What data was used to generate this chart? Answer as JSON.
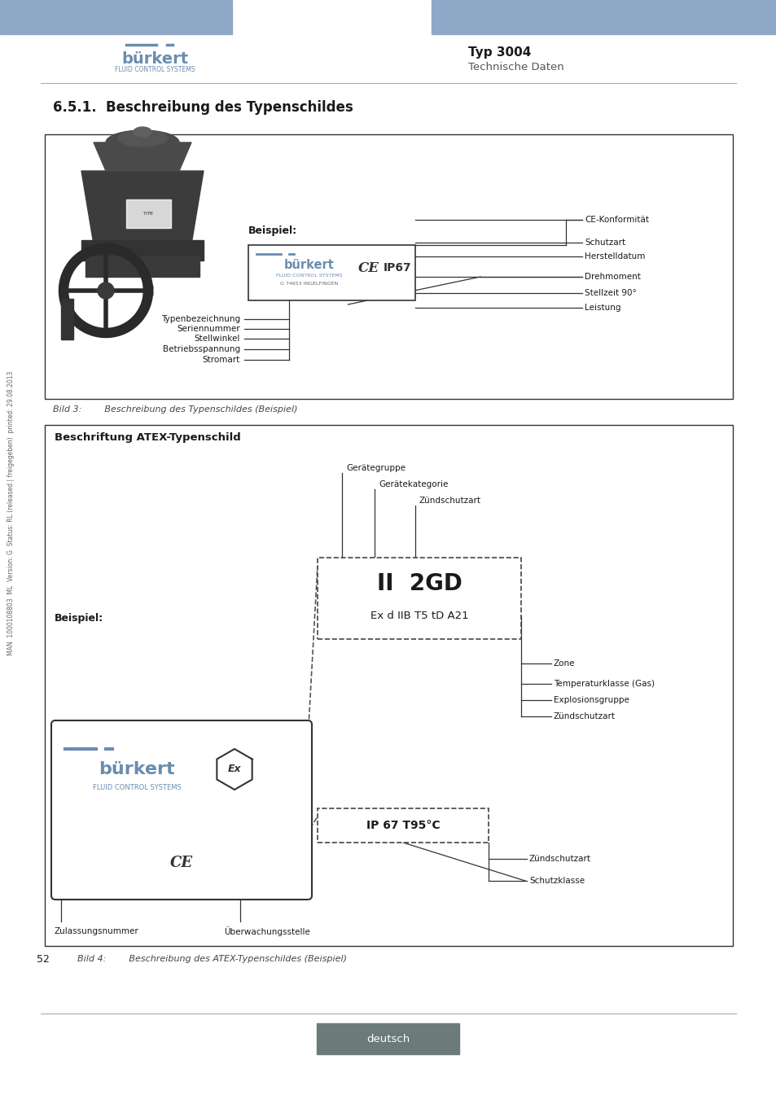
{
  "page_bg": "#ffffff",
  "header_blue": "#8fa8c8",
  "typ_label": "Typ 3004",
  "tech_label": "Technische Daten",
  "section_title": "6.5.1.    Beschreibung des Typenschildes",
  "fig1_title": "Beispiel:",
  "fig1_labels_left": [
    "Typenbezeichnung",
    "Seriennummer",
    "Stellwinkel",
    "Betriebsspannung",
    "Stromart"
  ],
  "fig1_labels_right": [
    "CE-Konformität",
    "Schutzart",
    "Herstelldatum",
    "Drehmoment",
    "Stellzeit 90°",
    "Leistung"
  ],
  "fig1_caption": "Bild 3:        Beschreibung des Typenschildes (Beispiel)",
  "fig2_box_title": "Beschriftung ATEX-Typenschild",
  "fig2_beispiel": "Beispiel:",
  "fig2_labels_top": [
    "Gerätegruppe",
    "Gerätekategorie",
    "Zündschutzart"
  ],
  "fig2_main_text": "II  2GD",
  "fig2_sub_text": "Ex d IIB T5 tD A21",
  "fig2_labels_right": [
    "Zone",
    "Temperaturklasse (Gas)",
    "Explosionsgruppe",
    "Zündschutzart"
  ],
  "fig2_ip_text": "IP 67 T95°C",
  "fig2_labels_bottom_right": [
    "Zündschutzart",
    "Schutzklasse"
  ],
  "fig2_labels_bottom_left": [
    "Zulassungsnummer",
    "Überwachungsstelle"
  ],
  "fig2_caption": "Bild 4:        Beschreibung des ATEX-Typenschildes (Beispiel)",
  "page_num": "52",
  "footer_text": "deutsch",
  "footer_bg": "#6d7a7a",
  "sidebar_text": "MAN  1000108803  ML  Version: G  Status: RL (released | freigegeben)  printed: 29.08.2013",
  "line_color": "#aaaaaa",
  "border_color": "#333333",
  "dashed_color": "#444444",
  "text_color": "#1a1a1a",
  "burkert_blue": "#6a8daf",
  "caption_color": "#444444"
}
